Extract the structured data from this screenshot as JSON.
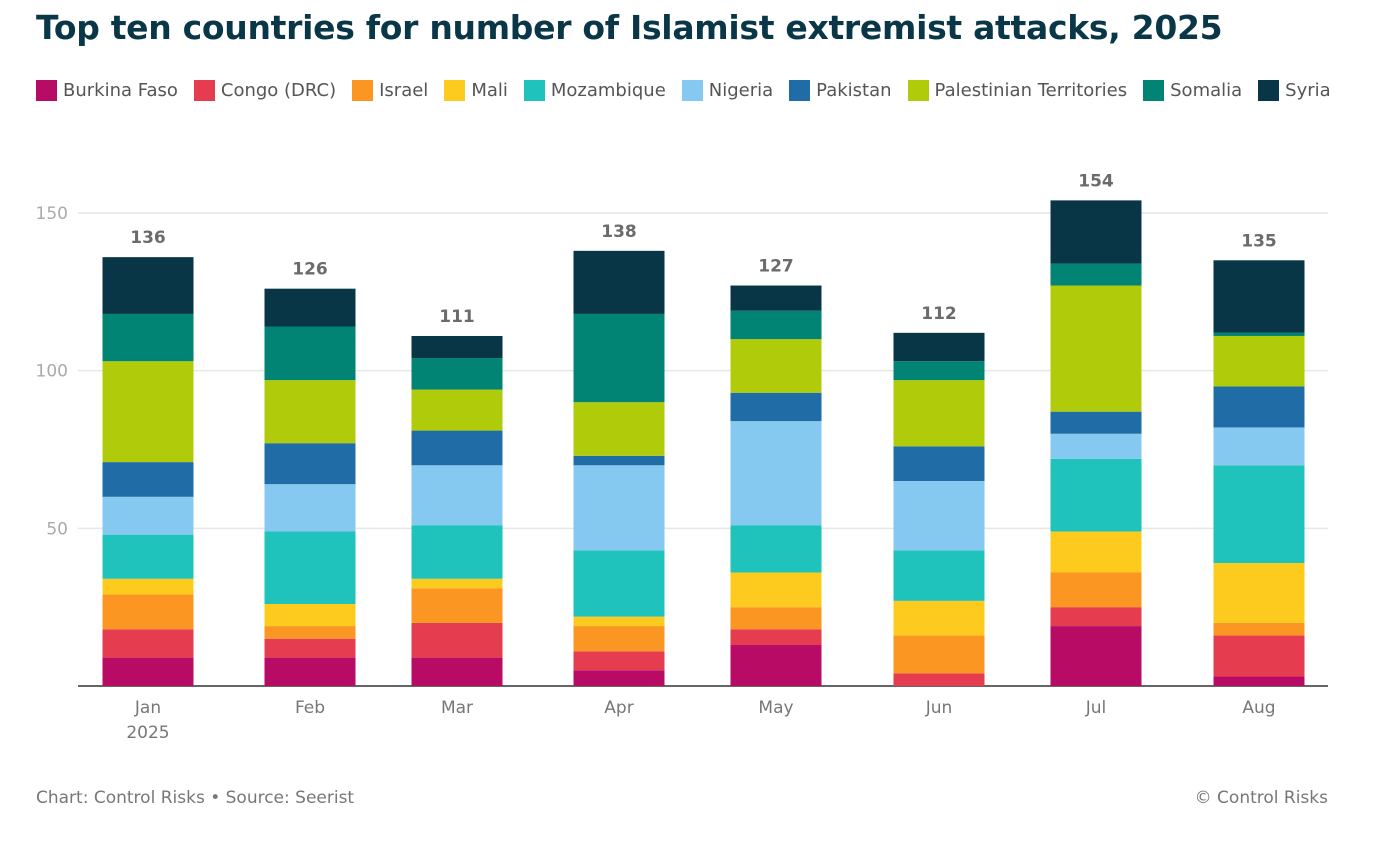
{
  "chart_data": {
    "type": "bar",
    "stacked": true,
    "title": "Top ten countries for number of Islamist extremist attacks, 2025",
    "xlabel": "",
    "ylabel": "",
    "ylim": [
      0,
      150
    ],
    "yticks": [
      50,
      100,
      150
    ],
    "grid": true,
    "legend_position": "top",
    "categories": [
      "Jan",
      "Feb",
      "Mar",
      "Apr",
      "May",
      "Jun",
      "Jul",
      "Aug"
    ],
    "category_sublabels": [
      "2025",
      "",
      "",
      "",
      "",
      "",
      "",
      ""
    ],
    "totals": [
      136,
      126,
      111,
      138,
      127,
      112,
      154,
      135
    ],
    "series": [
      {
        "name": "Burkina Faso",
        "color": "#b80b65",
        "values": [
          9,
          9,
          9,
          5,
          13,
          0,
          19,
          3
        ]
      },
      {
        "name": "Congo (DRC)",
        "color": "#e63c4f",
        "values": [
          9,
          6,
          11,
          6,
          5,
          4,
          6,
          13
        ]
      },
      {
        "name": "Israel",
        "color": "#fb9623",
        "values": [
          11,
          4,
          11,
          8,
          7,
          12,
          11,
          4
        ]
      },
      {
        "name": "Mali",
        "color": "#fdcb1e",
        "values": [
          5,
          7,
          3,
          3,
          11,
          11,
          13,
          19
        ]
      },
      {
        "name": "Mozambique",
        "color": "#20c3bb",
        "values": [
          14,
          23,
          17,
          21,
          15,
          16,
          23,
          31
        ]
      },
      {
        "name": "Nigeria",
        "color": "#86c9f0",
        "values": [
          12,
          15,
          19,
          27,
          33,
          22,
          8,
          12
        ]
      },
      {
        "name": "Pakistan",
        "color": "#1f6ca6",
        "values": [
          11,
          13,
          11,
          3,
          9,
          11,
          7,
          13
        ]
      },
      {
        "name": "Palestinian Territories",
        "color": "#afcb09",
        "values": [
          32,
          20,
          13,
          17,
          17,
          21,
          40,
          16
        ]
      },
      {
        "name": "Somalia",
        "color": "#018474",
        "values": [
          15,
          17,
          10,
          28,
          9,
          6,
          7,
          1
        ]
      },
      {
        "name": "Syria",
        "color": "#083646",
        "values": [
          18,
          12,
          7,
          20,
          8,
          9,
          20,
          23
        ]
      }
    ]
  },
  "footer": {
    "credit": "Chart: Control Risks • Source: Seerist",
    "copyright": "© Control Risks"
  }
}
